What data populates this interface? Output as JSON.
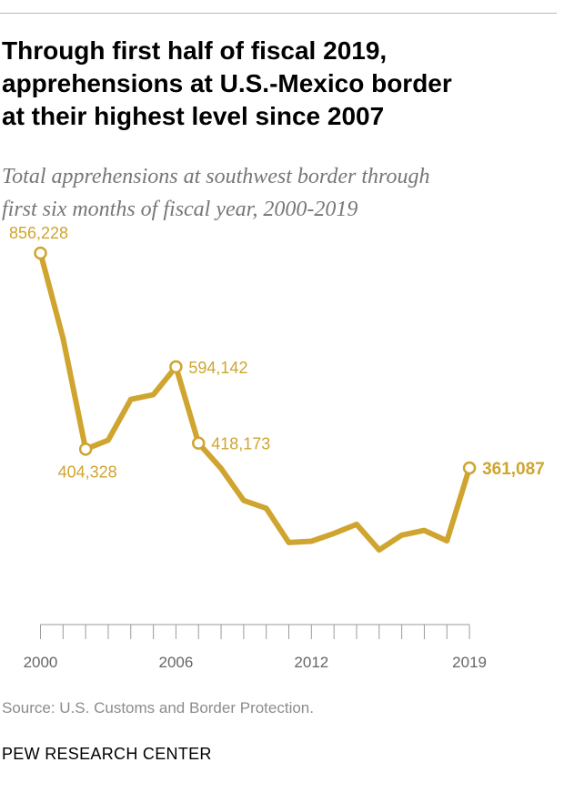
{
  "header": {
    "title_lines": [
      "Through first half of fiscal 2019,",
      "apprehensions at U.S.-Mexico border",
      "at their highest level since 2007"
    ],
    "subtitle_lines": [
      "Total apprehensions at southwest border through",
      "first six months of fiscal year, 2000-2019"
    ]
  },
  "chart_data": {
    "type": "line",
    "title": "Through first half of fiscal 2019, apprehensions at U.S.-Mexico border at their highest level since 2007",
    "subtitle": "Total apprehensions at southwest border through first six months of fiscal year, 2000-2019",
    "xlabel": "",
    "ylabel": "",
    "x": [
      2000,
      2001,
      2002,
      2003,
      2004,
      2005,
      2006,
      2007,
      2008,
      2009,
      2010,
      2011,
      2012,
      2013,
      2014,
      2015,
      2016,
      2017,
      2018,
      2019
    ],
    "values": [
      856228,
      660000,
      404328,
      425000,
      519000,
      530000,
      594142,
      418173,
      360000,
      286000,
      268000,
      189000,
      192000,
      210000,
      231000,
      172000,
      206000,
      217000,
      193000,
      361087
    ],
    "xlim": [
      1999.9,
      2019.4
    ],
    "ylim": [
      0,
      915000
    ],
    "x_tick_labels": [
      "2000",
      "2006",
      "2012",
      "2019"
    ],
    "x_tick_label_years": [
      2000,
      2006,
      2012,
      2019
    ],
    "grid": false,
    "line_color": "#cfa52f",
    "annotations": [
      {
        "index": 0,
        "label": "856,228",
        "bold": false,
        "anchor": "above"
      },
      {
        "index": 2,
        "label": "404,328",
        "bold": false,
        "anchor": "below"
      },
      {
        "index": 6,
        "label": "594,142",
        "bold": false,
        "anchor": "right"
      },
      {
        "index": 7,
        "label": "418,173",
        "bold": false,
        "anchor": "right"
      },
      {
        "index": 19,
        "label": "361,087",
        "bold": true,
        "anchor": "right"
      }
    ]
  },
  "footer": {
    "source": "Source: U.S. Customs and Border Protection.",
    "credit": "PEW RESEARCH CENTER"
  }
}
